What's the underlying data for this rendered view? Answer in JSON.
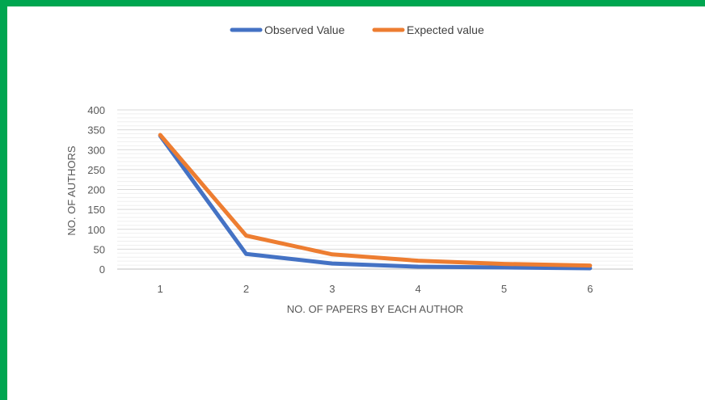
{
  "chart_data": {
    "type": "line",
    "categories": [
      "1",
      "2",
      "3",
      "4",
      "5",
      "6"
    ],
    "series": [
      {
        "name": "Observed Value",
        "values": [
          335,
          38,
          14,
          6,
          4,
          2
        ],
        "color": "#4472c4"
      },
      {
        "name": "Expected value",
        "values": [
          337,
          84,
          37,
          21,
          13,
          9
        ],
        "color": "#ed7d31"
      }
    ],
    "xlabel": "NO. OF PAPERS BY EACH AUTHOR",
    "ylabel": "NO. OF AUTHORS",
    "ylim": [
      0,
      400
    ],
    "yticks": [
      "0",
      "50",
      "100",
      "150",
      "200",
      "250",
      "300",
      "350",
      "400"
    ],
    "grid": true,
    "legend_position": "top"
  },
  "frame_color": "#00a650"
}
